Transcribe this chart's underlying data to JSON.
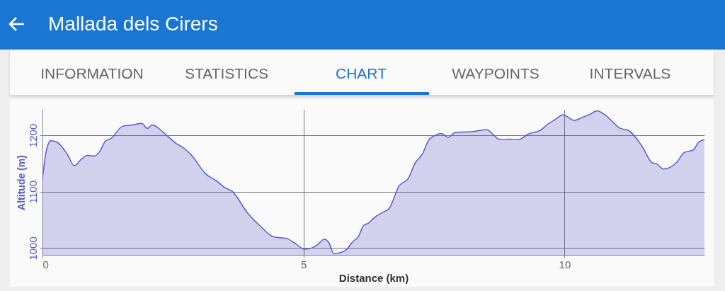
{
  "chart_data": {
    "type": "area",
    "title": "Mallada dels Cirers",
    "xlabel": "Distance (km)",
    "ylabel": "Altitude (m)",
    "annotations": [
      "INFORMATION",
      "STATISTICS",
      "CHART",
      "WAYPOINTS",
      "INTERVALS"
    ],
    "x": [
      0,
      0.07,
      0.16,
      0.27,
      0.47,
      0.61,
      0.75,
      0.86,
      0.99,
      1.11,
      1.2,
      1.31,
      1.54,
      1.72,
      1.9,
      2.01,
      2.1,
      2.35,
      2.55,
      2.71,
      2.85,
      3.12,
      3.35,
      3.48,
      3.64,
      3.93,
      4.16,
      4.43,
      4.68,
      4.86,
      5.02,
      5.18,
      5.27,
      5.4,
      5.49,
      5.58,
      5.67,
      5.83,
      5.92,
      6.06,
      6.15,
      6.24,
      6.37,
      6.53,
      6.64,
      6.83,
      7.01,
      7.14,
      7.28,
      7.39,
      7.53,
      7.64,
      7.77,
      7.91,
      8.23,
      8.5,
      8.77,
      8.95,
      9.11,
      9.31,
      9.56,
      9.67,
      9.81,
      9.97,
      10.19,
      10.33,
      10.49,
      10.62,
      10.76,
      11.07,
      11.23,
      11.48,
      11.68,
      11.77,
      11.89,
      12.14,
      12.29,
      12.47,
      12.57,
      12.68
    ],
    "series": [
      {
        "color": "#5a5acd",
        "values": [
          1122,
          1171,
          1190,
          1188,
          1167,
          1146,
          1158,
          1164,
          1163,
          1173,
          1189,
          1194,
          1216,
          1218,
          1221,
          1212,
          1218,
          1202,
          1186,
          1177,
          1165,
          1132,
          1118,
          1108,
          1100,
          1062,
          1040,
          1020,
          1017,
          1007,
          998,
          1001,
          1006,
          1016,
          1009,
          990,
          991,
          998,
          1009,
          1022,
          1040,
          1044,
          1055,
          1064,
          1070,
          1110,
          1124,
          1151,
          1167,
          1190,
          1200,
          1203,
          1196,
          1205,
          1206,
          1210,
          1192,
          1193,
          1192,
          1202,
          1210,
          1219,
          1227,
          1236,
          1226,
          1231,
          1237,
          1243,
          1237,
          1212,
          1208,
          1181,
          1151,
          1149,
          1140,
          1151,
          1169,
          1174,
          1188,
          1192
        ]
      }
    ],
    "xlim": [
      0,
      12.68
    ],
    "ylim": [
      988,
      1245
    ],
    "xticks": [
      0,
      5,
      10
    ],
    "yticks": [
      1000,
      1100,
      1200
    ],
    "grid": true
  }
}
